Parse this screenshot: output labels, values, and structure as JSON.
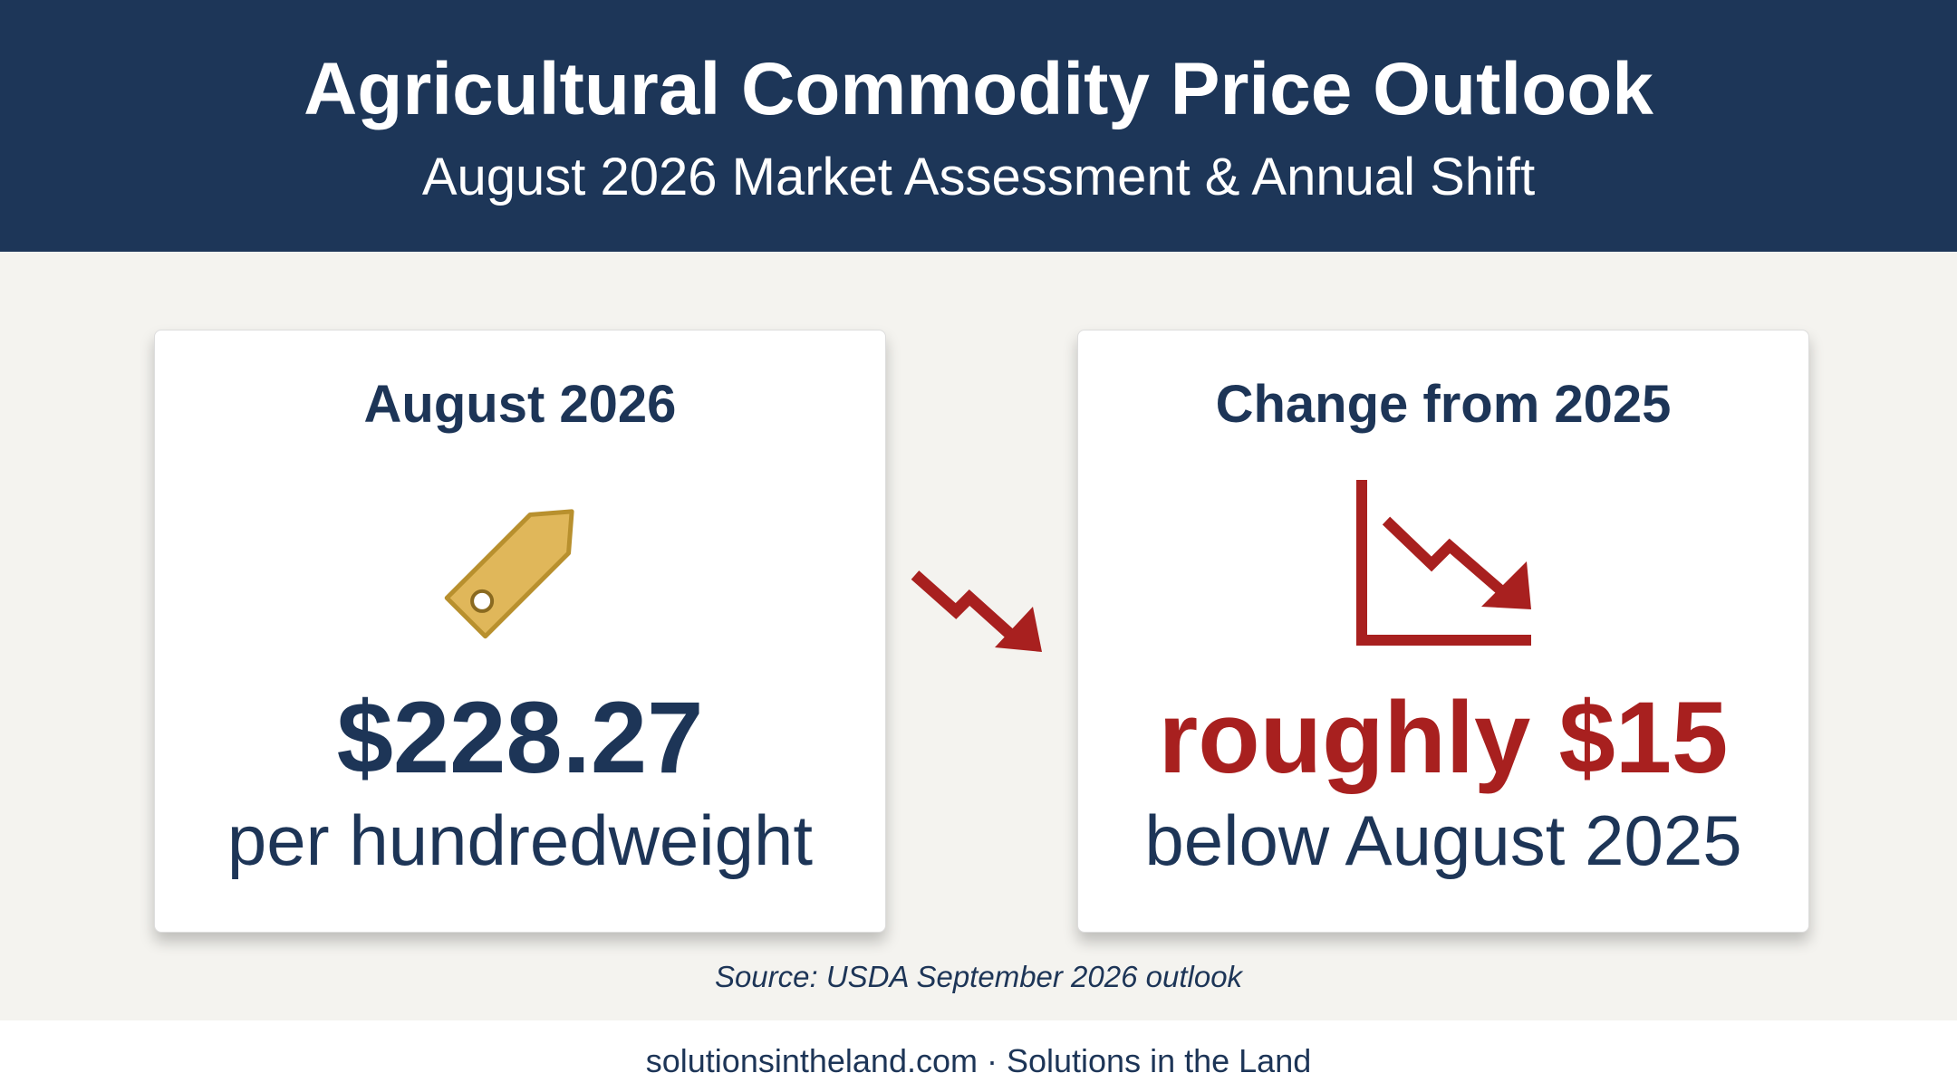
{
  "header": {
    "title": "Agricultural Commodity Price Outlook",
    "subtitle": "August 2026 Market Assessment & Annual Shift"
  },
  "cards": [
    {
      "title": "August 2026",
      "value": "$228.27",
      "caption": "per hundredweight"
    },
    {
      "title": "Change from 2025",
      "value": "roughly $15",
      "caption": "below August 2025"
    }
  ],
  "source": "Source: USDA September 2026 outlook",
  "footer": "solutionsintheland.com · Solutions in the Land"
}
